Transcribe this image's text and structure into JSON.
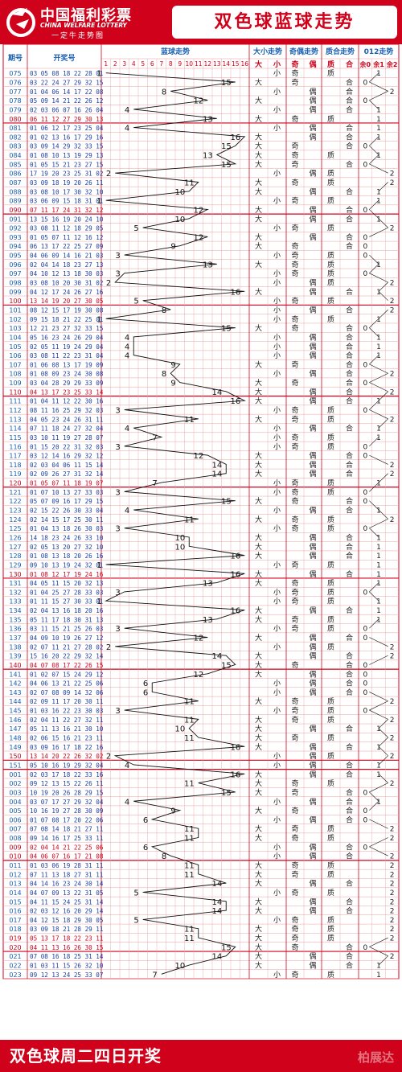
{
  "header": {
    "brand_cn": "中国福利彩票",
    "brand_en": "CHINA WELFARE LOTTERY",
    "brand_sub": "一定牛走势图",
    "title": "双色球蓝球走势"
  },
  "footer": {
    "text": "双色球周二四日开奖",
    "watermark": "柏展达"
  },
  "colors": {
    "brand_red": "#d0021b",
    "grid_line": "#e8a0a0",
    "issue_blue": "#1b5fb0",
    "issue_red": "#d0021b",
    "digit_blue": "#1a3fa0",
    "curve": "#111111"
  },
  "chart_data": {
    "type": "table",
    "groups": [
      "期号",
      "开奖号",
      "蓝球走势",
      "大小走势",
      "奇偶走势",
      "质合走势",
      "012走势"
    ],
    "blue_columns": [
      "1",
      "2",
      "3",
      "4",
      "5",
      "6",
      "7",
      "8",
      "9",
      "10",
      "11",
      "12",
      "13",
      "14",
      "15",
      "16"
    ],
    "size_labels": [
      "大",
      "小"
    ],
    "parity_labels": [
      "奇",
      "偶"
    ],
    "prime_labels": [
      "质",
      "合"
    ],
    "mod_labels": [
      "余0",
      "余1",
      "余2"
    ],
    "rows": [
      {
        "issue": "075",
        "nums": "03 05 08 18 22 28",
        "blue": 1
      },
      {
        "issue": "076",
        "nums": "03 22 24 27 29 32",
        "blue": 15
      },
      {
        "issue": "077",
        "nums": "01 04 06 14 17 22",
        "blue": 8
      },
      {
        "issue": "078",
        "nums": "05 09 14 21 22 26",
        "blue": 12
      },
      {
        "issue": "079",
        "nums": "02 03 06 07 16 26",
        "blue": 4
      },
      {
        "issue": "080",
        "nums": "06 11 12 27 29 30",
        "blue": 13
      },
      {
        "issue": "081",
        "nums": "01 06 12 17 23 25",
        "blue": 4
      },
      {
        "issue": "082",
        "nums": "01 02 13 16 17 29",
        "blue": 16
      },
      {
        "issue": "083",
        "nums": "03 09 14 29 32 33",
        "blue": 15
      },
      {
        "issue": "084",
        "nums": "01 08 10 13 19 29",
        "blue": 13
      },
      {
        "issue": "085",
        "nums": "01 05 15 21 23 27",
        "blue": 15
      },
      {
        "issue": "086",
        "nums": "17 19 20 23 25 31",
        "blue": 2
      },
      {
        "issue": "087",
        "nums": "03 09 18 19 20 26",
        "blue": 11
      },
      {
        "issue": "088",
        "nums": "03 08 10 17 30 32",
        "blue": 10
      },
      {
        "issue": "089",
        "nums": "03 06 09 15 18 31",
        "blue": 1
      },
      {
        "issue": "090",
        "nums": "07 11 17 24 31 32",
        "blue": 12
      },
      {
        "issue": "091",
        "nums": "13 15 16 19 20 24",
        "blue": 10
      },
      {
        "issue": "092",
        "nums": "03 08 11 12 18 29",
        "blue": 5
      },
      {
        "issue": "093",
        "nums": "01 05 07 11 12 16",
        "blue": 12
      },
      {
        "issue": "094",
        "nums": "06 13 17 22 25 27",
        "blue": 9
      },
      {
        "issue": "095",
        "nums": "04 06 09 14 16 21",
        "blue": 3
      },
      {
        "issue": "096",
        "nums": "02 04 14 18 23 27",
        "blue": 13
      },
      {
        "issue": "097",
        "nums": "04 10 12 13 18 30",
        "blue": 3
      },
      {
        "issue": "098",
        "nums": "03 08 10 20 30 31",
        "blue": 2
      },
      {
        "issue": "099",
        "nums": "04 12 17 24 26 27",
        "blue": 16
      },
      {
        "issue": "100",
        "nums": "13 14 19 20 27 30",
        "blue": 5
      },
      {
        "issue": "101",
        "nums": "08 12 15 17 19 30",
        "blue": 8
      },
      {
        "issue": "102",
        "nums": "09 15 18 21 22 25",
        "blue": 1
      },
      {
        "issue": "103",
        "nums": "12 21 23 27 32 33",
        "blue": 15
      },
      {
        "issue": "104",
        "nums": "05 16 23 24 26 29",
        "blue": 4
      },
      {
        "issue": "105",
        "nums": "02 05 11 19 24 29",
        "blue": 4
      },
      {
        "issue": "106",
        "nums": "03 08 11 22 23 31",
        "blue": 4
      },
      {
        "issue": "107",
        "nums": "01 06 08 13 17 19",
        "blue": 9
      },
      {
        "issue": "108",
        "nums": "01 08 09 23 24 30",
        "blue": 8
      },
      {
        "issue": "109",
        "nums": "03 04 28 29 29 33",
        "blue": 9
      },
      {
        "issue": "110",
        "nums": "04 13 17 23 25 33",
        "blue": 14
      },
      {
        "issue": "111",
        "nums": "01 04 11 12 22 30",
        "blue": 16
      },
      {
        "issue": "112",
        "nums": "08 11 16 25 29 32",
        "blue": 3
      },
      {
        "issue": "113",
        "nums": "04 05 23 24 26 31",
        "blue": 11
      },
      {
        "issue": "114",
        "nums": "07 11 18 24 27 32",
        "blue": 4
      },
      {
        "issue": "115",
        "nums": "03 10 11 19 27 28",
        "blue": 7
      },
      {
        "issue": "116",
        "nums": "01 15 20 22 31 32",
        "blue": 3
      },
      {
        "issue": "117",
        "nums": "03 12 14 16 29 32",
        "blue": 12
      },
      {
        "issue": "118",
        "nums": "02 03 04 06 11 15",
        "blue": 14
      },
      {
        "issue": "119",
        "nums": "02 09 26 27 31 32",
        "blue": 14
      },
      {
        "issue": "120",
        "nums": "01 05 07 11 18 19",
        "blue": 7
      },
      {
        "issue": "121",
        "nums": "01 07 10 13 27 33",
        "blue": 3
      },
      {
        "issue": "122",
        "nums": "05 07 09 16 17 29",
        "blue": 15
      },
      {
        "issue": "123",
        "nums": "02 15 22 26 30 33",
        "blue": 4
      },
      {
        "issue": "124",
        "nums": "02 14 15 17 25 30",
        "blue": 11
      },
      {
        "issue": "125",
        "nums": "01 04 13 18 26 30",
        "blue": 3
      },
      {
        "issue": "126",
        "nums": "14 18 23 24 26 33",
        "blue": 10
      },
      {
        "issue": "127",
        "nums": "02 05 13 20 27 32",
        "blue": 10
      },
      {
        "issue": "128",
        "nums": "01 08 13 18 20 26",
        "blue": 16
      },
      {
        "issue": "129",
        "nums": "09 10 13 19 24 32",
        "blue": 1
      },
      {
        "issue": "130",
        "nums": "01 08 12 17 19 24",
        "blue": 16
      },
      {
        "issue": "131",
        "nums": "04 05 11 15 20 32",
        "blue": 13
      },
      {
        "issue": "132",
        "nums": "01 04 25 27 28 33",
        "blue": 3
      },
      {
        "issue": "133",
        "nums": "01 11 15 27 30 33",
        "blue": 1
      },
      {
        "issue": "134",
        "nums": "02 04 13 16 18 20",
        "blue": 16
      },
      {
        "issue": "135",
        "nums": "05 11 17 18 30 31",
        "blue": 13
      },
      {
        "issue": "136",
        "nums": "03 11 15 21 25 26",
        "blue": 3
      },
      {
        "issue": "137",
        "nums": "04 09 10 19 26 27",
        "blue": 12
      },
      {
        "issue": "138",
        "nums": "02 07 11 21 27 28",
        "blue": 2
      },
      {
        "issue": "139",
        "nums": "15 16 20 22 29 32",
        "blue": 14
      },
      {
        "issue": "140",
        "nums": "04 07 08 17 22 26",
        "blue": 15
      },
      {
        "issue": "141",
        "nums": "01 02 07 15 24 29",
        "blue": 12
      },
      {
        "issue": "142",
        "nums": "04 06 13 21 22 25",
        "blue": 6
      },
      {
        "issue": "143",
        "nums": "02 07 08 09 14 32",
        "blue": 6
      },
      {
        "issue": "144",
        "nums": "02 09 11 17 20 30",
        "blue": 11
      },
      {
        "issue": "145",
        "nums": "01 03 16 22 23 30",
        "blue": 3
      },
      {
        "issue": "146",
        "nums": "02 04 11 22 27 32",
        "blue": 11
      },
      {
        "issue": "147",
        "nums": "05 11 13 16 21 30",
        "blue": 10
      },
      {
        "issue": "148",
        "nums": "02 06 15 16 21 23",
        "blue": 11
      },
      {
        "issue": "149",
        "nums": "03 09 16 17 18 22",
        "blue": 16
      },
      {
        "issue": "150",
        "nums": "13 14 20 22 26 32",
        "blue": 2
      },
      {
        "issue": "151",
        "nums": "05 10 16 19 29 32",
        "blue": 4
      },
      {
        "issue": "001",
        "nums": "02 03 17 18 22 33",
        "blue": 16
      },
      {
        "issue": "002",
        "nums": "09 12 13 15 22 26",
        "blue": 11
      },
      {
        "issue": "003",
        "nums": "10 19 20 26 28 29",
        "blue": 15
      },
      {
        "issue": "004",
        "nums": "03 07 17 27 29 32",
        "blue": 4
      },
      {
        "issue": "005",
        "nums": "10 16 19 27 28 30",
        "blue": 9
      },
      {
        "issue": "006",
        "nums": "01 07 08 17 20 22",
        "blue": 6
      },
      {
        "issue": "007",
        "nums": "07 08 14 18 21 27",
        "blue": 11
      },
      {
        "issue": "008",
        "nums": "09 14 16 17 25 33",
        "blue": 11
      },
      {
        "issue": "009",
        "nums": "02 04 14 21 22 25",
        "blue": 6
      },
      {
        "issue": "010",
        "nums": "04 06 07 16 17 21",
        "blue": 8
      },
      {
        "issue": "011",
        "nums": "01 03 06 19 28 31",
        "blue": 11
      },
      {
        "issue": "012",
        "nums": "07 11 13 18 27 31",
        "blue": 11
      },
      {
        "issue": "013",
        "nums": "04 14 16 23 24 30",
        "blue": 14
      },
      {
        "issue": "014",
        "nums": "04 07 09 13 22 31",
        "blue": 5
      },
      {
        "issue": "015",
        "nums": "04 11 15 24 25 31",
        "blue": 14
      },
      {
        "issue": "016",
        "nums": "02 03 12 16 20 29",
        "blue": 14
      },
      {
        "issue": "017",
        "nums": "04 12 15 18 29 30",
        "blue": 5
      },
      {
        "issue": "018",
        "nums": "03 09 18 21 28 29",
        "blue": 11
      },
      {
        "issue": "019",
        "nums": "05 13 17 18 22 23",
        "blue": 11
      },
      {
        "issue": "020",
        "nums": "04 11 13 16 26 30",
        "blue": 15
      },
      {
        "issue": "021",
        "nums": "07 08 16 18 25 31",
        "blue": 14
      },
      {
        "issue": "022",
        "nums": "01 03 11 15 26 32",
        "blue": 10
      },
      {
        "issue": "023",
        "nums": "09 12 13 24 25 33",
        "blue": 7
      }
    ]
  }
}
